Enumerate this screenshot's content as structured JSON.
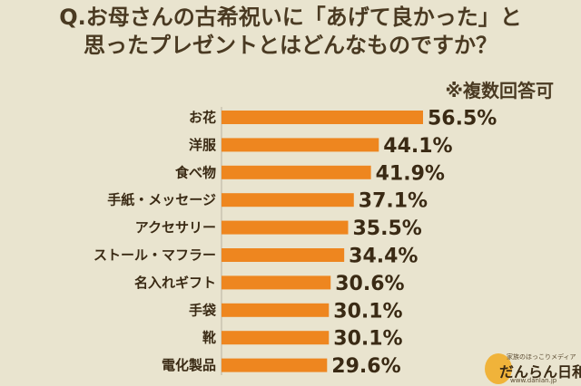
{
  "title": {
    "line1": "Q.お母さんの古希祝いに「あげて良かった」と",
    "line2": "思ったプレゼントとはどんなものですか？"
  },
  "note": "※複数回答可",
  "chart_data": {
    "type": "bar",
    "orientation": "horizontal",
    "categories": [
      "お花",
      "洋服",
      "食べ物",
      "手紙・メッセージ",
      "アクセサリー",
      "ストール・マフラー",
      "名入れギフト",
      "手袋",
      "靴",
      "電化製品"
    ],
    "values": [
      56.5,
      44.1,
      41.9,
      37.1,
      35.5,
      34.4,
      30.6,
      30.1,
      30.1,
      29.6
    ],
    "value_labels": [
      "56.5%",
      "44.1%",
      "41.9%",
      "37.1%",
      "35.5%",
      "34.4%",
      "30.6%",
      "30.1%",
      "30.1%",
      "29.6%"
    ],
    "bar_color": "#ee861f",
    "grid": false
  },
  "logo": {
    "tagline": "家族のほっこりメディア",
    "name": "だんらん日和",
    "url": "www.danlan.jp"
  },
  "colors": {
    "background": "#e9e4cf",
    "text": "#4a3a22"
  }
}
